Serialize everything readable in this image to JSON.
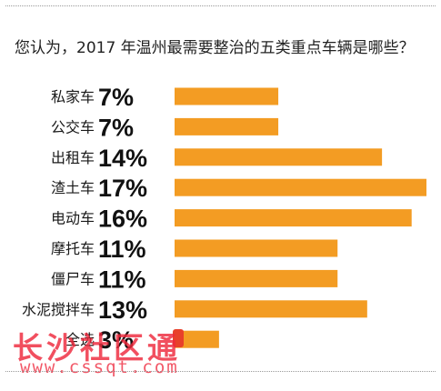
{
  "chart_data": {
    "type": "bar",
    "orientation": "horizontal",
    "title": "您认为，2017 年温州最需要整治的五类重点车辆是哪些？",
    "categories": [
      "私家车",
      "公交车",
      "出租车",
      "渣土车",
      "电动车",
      "摩托车",
      "僵尸车",
      "水泥搅拌车",
      "全选"
    ],
    "values": [
      7,
      7,
      14,
      17,
      16,
      11,
      11,
      13,
      3
    ],
    "value_labels": [
      "7%",
      "7%",
      "14%",
      "17%",
      "16%",
      "11%",
      "11%",
      "13%",
      "3%"
    ],
    "unit": "%",
    "bar_color": "#f39c23",
    "grid": false,
    "legend": "none"
  },
  "watermark": {
    "text": "长沙社区通",
    "url": "www.cssqt.com",
    "color": "#ee283c"
  }
}
